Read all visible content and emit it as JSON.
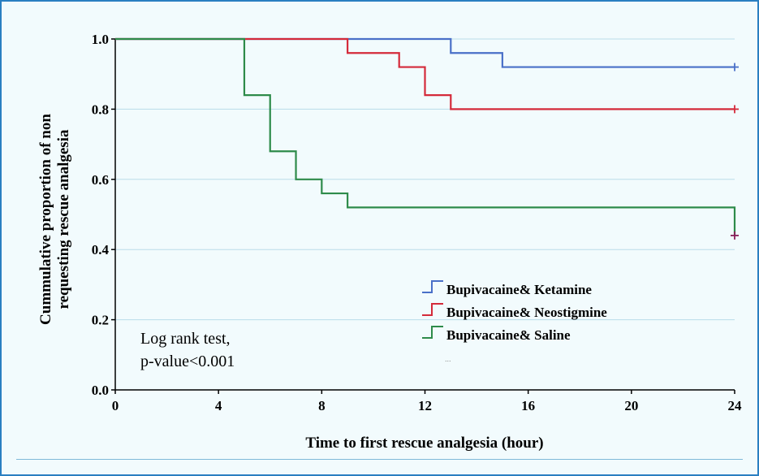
{
  "chart_data": {
    "type": "line",
    "subtype": "kaplan-meier step",
    "xlabel": "Time to first rescue analgesia (hour)",
    "ylabel_lines": [
      "Cummulative proportion of non",
      "requesting rescue analgesia"
    ],
    "xlim": [
      0,
      24
    ],
    "ylim": [
      0,
      1
    ],
    "xticks": [
      0,
      4,
      8,
      12,
      16,
      20,
      24
    ],
    "yticks": [
      0.0,
      0.2,
      0.4,
      0.6,
      0.8,
      1.0
    ],
    "xtick_labels": [
      "0",
      "4",
      "8",
      "12",
      "16",
      "20",
      "24"
    ],
    "ytick_labels": [
      "0.0",
      "0.2",
      "0.4",
      "0.6",
      "0.8",
      "1.0"
    ],
    "grid": "horizontal",
    "legend_position": "lower-right",
    "annotation_lines": [
      "Log rank test,",
      "p-value<0.001"
    ],
    "legend_extra": "...",
    "series": [
      {
        "name": "Bupivacaine& Ketamine",
        "color": "#4a70c8",
        "steps": [
          [
            0,
            1.0
          ],
          [
            13,
            0.96
          ],
          [
            15,
            0.92
          ],
          [
            24,
            0.92
          ]
        ],
        "censored": [
          [
            24,
            0.92
          ]
        ]
      },
      {
        "name": "Bupivacaine& Neostigmine",
        "color": "#d42a3a",
        "steps": [
          [
            0,
            1.0
          ],
          [
            9,
            0.96
          ],
          [
            11,
            0.92
          ],
          [
            12,
            0.84
          ],
          [
            13,
            0.8
          ],
          [
            24,
            0.8
          ]
        ],
        "censored": [
          [
            24,
            0.8
          ]
        ]
      },
      {
        "name": "Bupivacaine& Saline",
        "color": "#2e8b4a",
        "steps": [
          [
            0,
            1.0
          ],
          [
            5,
            0.84
          ],
          [
            6,
            0.68
          ],
          [
            7,
            0.6
          ],
          [
            8,
            0.56
          ],
          [
            9,
            0.52
          ],
          [
            24,
            0.52
          ],
          [
            24,
            0.44
          ]
        ],
        "censored": [
          [
            24,
            0.44
          ]
        ]
      }
    ]
  },
  "colors": {
    "frame_border": "#2a7fc1",
    "background": "#f2fbfd",
    "grid": "#b9dce9",
    "censor_mark_saline": "#8a1f5a"
  }
}
